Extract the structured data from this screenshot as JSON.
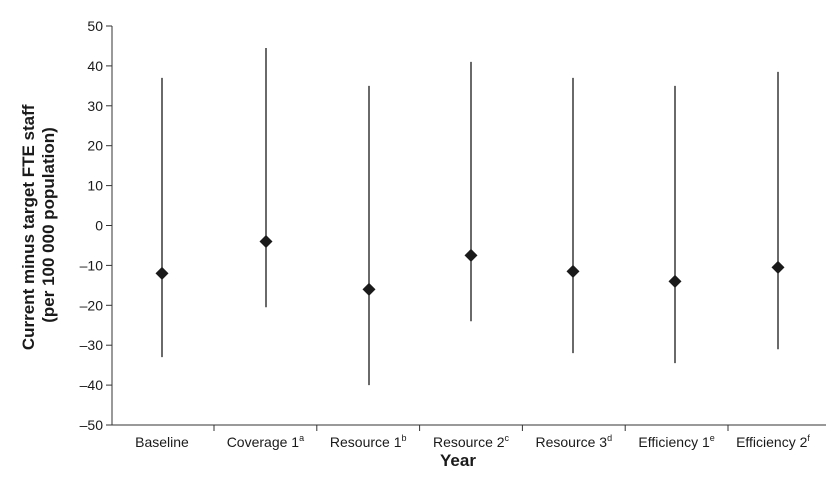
{
  "chart_data": {
    "type": "scatter",
    "title": "",
    "xlabel": "Year",
    "ylabel": "Current minus target FTE staff (per 100 000 population)",
    "ylabel_lines": [
      "Current minus target FTE staff",
      "(per 100 000 population)"
    ],
    "ylim": [
      -50,
      50
    ],
    "yticks": [
      50,
      40,
      30,
      20,
      10,
      0,
      -10,
      -20,
      -30,
      -40,
      -50
    ],
    "ytick_labels": [
      "50",
      "40",
      "30",
      "20",
      "10",
      "0",
      "–10",
      "–20",
      "–30",
      "–40",
      "–50"
    ],
    "grid": false,
    "categories": [
      {
        "name": "Baseline",
        "sup": ""
      },
      {
        "name": "Coverage 1",
        "sup": "a"
      },
      {
        "name": "Resource 1",
        "sup": "b"
      },
      {
        "name": "Resource 2",
        "sup": "c"
      },
      {
        "name": "Resource 3",
        "sup": "d"
      },
      {
        "name": "Efficiency 1",
        "sup": "e"
      },
      {
        "name": "Efficiency 2",
        "sup": "f"
      }
    ],
    "values": [
      -12,
      -4,
      -16,
      -7.5,
      -11.5,
      -14,
      -10.5
    ],
    "lower": [
      -33,
      -20.5,
      -40,
      -24,
      -32,
      -34.5,
      -31
    ],
    "upper": [
      37,
      44.5,
      35,
      41,
      37,
      35,
      38.5
    ]
  }
}
